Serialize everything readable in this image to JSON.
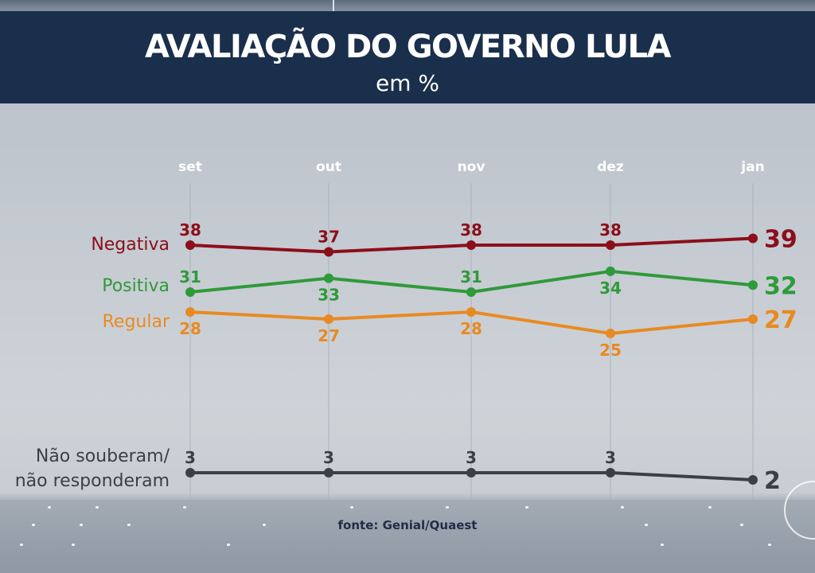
{
  "header": {
    "title": "AVALIAÇÃO DO GOVERNO LULA",
    "subtitle": "em %"
  },
  "source": "fonte: Genial/Quaest",
  "chart_data": {
    "type": "line",
    "title": "AVALIAÇÃO DO GOVERNO LULA",
    "subtitle": "em %",
    "xlabel": "",
    "ylabel": "",
    "categories": [
      "set",
      "out",
      "nov",
      "dez",
      "jan"
    ],
    "grid": "vertical",
    "legend": "left (inline labels)",
    "series": [
      {
        "name": "Negativa",
        "color": "#8b0f1a",
        "values": [
          38,
          37,
          38,
          38,
          39
        ]
      },
      {
        "name": "Positiva",
        "color": "#2f9a3a",
        "values": [
          31,
          33,
          31,
          34,
          32
        ]
      },
      {
        "name": "Regular",
        "color": "#e88a22",
        "values": [
          28,
          27,
          28,
          25,
          27
        ]
      },
      {
        "name": "Não souberam/ não responderam",
        "name_lines": [
          "Não souberam/",
          "não responderam"
        ],
        "color": "#3c3f44",
        "values": [
          3,
          3,
          3,
          3,
          2
        ]
      }
    ]
  },
  "colors": {
    "banner": "#1a2f4b",
    "negativa": "#8b0f1a",
    "positiva": "#2f9a3a",
    "regular": "#e88a22",
    "nsnr": "#3c3f44"
  }
}
